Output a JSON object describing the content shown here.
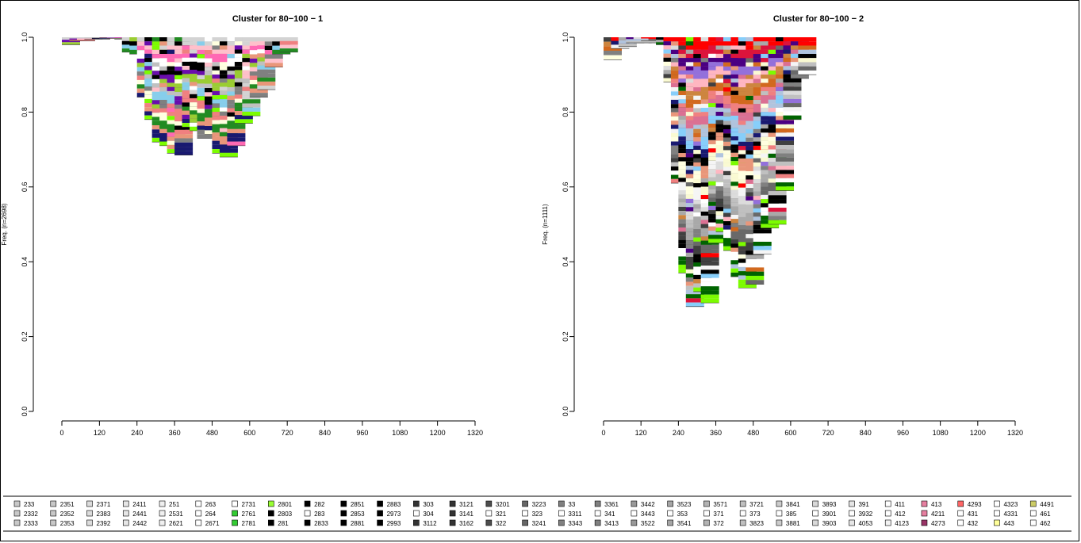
{
  "chart_data": [
    {
      "type": "stacked-bar",
      "title": "Cluster for 80−100 −  1",
      "ylabel": "Freq. (n=2698)",
      "xlabel": "",
      "ylim": [
        0,
        1
      ],
      "yticks": [
        "0.0",
        "0.2",
        "0.4",
        "0.6",
        "0.8",
        "1.0"
      ],
      "xticks": [
        "0",
        "120",
        "240",
        "360",
        "480",
        "600",
        "720",
        "840",
        "960",
        "1080",
        "1200",
        "1320"
      ],
      "x_start": 0,
      "x_step": 24,
      "bar_bottoms": [
        0.98,
        0.99,
        0.99,
        0.995,
        0.995,
        0.998,
        0.997,
        0.995,
        0.96,
        0.955,
        0.84,
        0.78,
        0.72,
        0.71,
        0.69,
        0.685,
        0.76,
        0.75,
        0.73,
        0.74,
        0.69,
        0.68,
        0.71,
        0.77,
        0.79,
        0.84,
        0.86,
        0.92,
        0.955,
        0.96
      ],
      "palette": [
        "#d3d3d3",
        "#ffc0cb",
        "#ff69b4",
        "#ffffff",
        "#000000",
        "#6a0dad",
        "#9acd32",
        "#c0c0c0",
        "#87ceeb",
        "#808080",
        "#f08080",
        "#ffffe0",
        "#228b22",
        "#e9967a",
        "#191970",
        "#7cfc00"
      ],
      "grid": false,
      "legend": "bottom"
    },
    {
      "type": "stacked-bar",
      "title": "Cluster for 80−100 −  2",
      "ylabel": "Freq. (n=1111)",
      "xlabel": "",
      "ylim": [
        0,
        1
      ],
      "yticks": [
        "0.0",
        "0.2",
        "0.4",
        "0.6",
        "0.8",
        "1.0"
      ],
      "xticks": [
        "0",
        "120",
        "240",
        "360",
        "480",
        "600",
        "720",
        "840",
        "960",
        "1080",
        "1200",
        "1320"
      ],
      "x_start": 0,
      "x_step": 24,
      "bar_bottoms": [
        0.94,
        0.97,
        0.975,
        0.985,
        0.985,
        0.99,
        0.985,
        0.98,
        0.88,
        0.61,
        0.37,
        0.28,
        0.32,
        0.29,
        0.45,
        0.48,
        0.43,
        0.36,
        0.33,
        0.34,
        0.42,
        0.49,
        0.5,
        0.59,
        0.78,
        0.89,
        0.9
      ],
      "palette": [
        "#ff0000",
        "#dc143c",
        "#4b0082",
        "#9370db",
        "#ffb6c1",
        "#cd853f",
        "#d2691e",
        "#f08080",
        "#db7093",
        "#b0c4de",
        "#87cefa",
        "#191970",
        "#000000",
        "#e9967a",
        "#ffffe0",
        "#fafad2",
        "#f5f5f5",
        "#dcdcdc",
        "#c0c0c0",
        "#a9a9a9",
        "#808080",
        "#696969",
        "#404040",
        "#000000",
        "#ffffff",
        "#006400",
        "#7cfc00"
      ],
      "grid": false,
      "legend": "bottom"
    }
  ],
  "legend": {
    "items": [
      {
        "label": "233",
        "color": "#c8c8c8"
      },
      {
        "label": "2332",
        "color": "#c8c8c8"
      },
      {
        "label": "2333",
        "color": "#c8c8c8"
      },
      {
        "label": "2351",
        "color": "#c8c8c8"
      },
      {
        "label": "2352",
        "color": "#c8c8c8"
      },
      {
        "label": "2353",
        "color": "#c8c8c8"
      },
      {
        "label": "2371",
        "color": "#dcdcdc"
      },
      {
        "label": "2383",
        "color": "#dcdcdc"
      },
      {
        "label": "2392",
        "color": "#dcdcdc"
      },
      {
        "label": "2411",
        "color": "#e6e6e6"
      },
      {
        "label": "2441",
        "color": "#e6e6e6"
      },
      {
        "label": "2442",
        "color": "#e6e6e6"
      },
      {
        "label": "251",
        "color": "#f0f0f0"
      },
      {
        "label": "2531",
        "color": "#f0f0f0"
      },
      {
        "label": "2621",
        "color": "#f0f0f0"
      },
      {
        "label": "263",
        "color": "#ffffff"
      },
      {
        "label": "264",
        "color": "#ffffff"
      },
      {
        "label": "2671",
        "color": "#ffffff"
      },
      {
        "label": "2731",
        "color": "#ffffff"
      },
      {
        "label": "2761",
        "color": "#33cc33"
      },
      {
        "label": "2781",
        "color": "#33cc33"
      },
      {
        "label": "2801",
        "color": "#99ff33"
      },
      {
        "label": "2803",
        "color": "#000000"
      },
      {
        "label": "281",
        "color": "#000000"
      },
      {
        "label": "282",
        "color": "#000000"
      },
      {
        "label": "283",
        "color": "#ffffff"
      },
      {
        "label": "2833",
        "color": "#000000"
      },
      {
        "label": "2851",
        "color": "#000000"
      },
      {
        "label": "2853",
        "color": "#000000"
      },
      {
        "label": "2881",
        "color": "#000000"
      },
      {
        "label": "2883",
        "color": "#000000"
      },
      {
        "label": "2973",
        "color": "#000000"
      },
      {
        "label": "2993",
        "color": "#000000"
      },
      {
        "label": "303",
        "color": "#333333"
      },
      {
        "label": "304",
        "color": "#ffffff"
      },
      {
        "label": "3112",
        "color": "#333333"
      },
      {
        "label": "3121",
        "color": "#333333"
      },
      {
        "label": "3141",
        "color": "#333333"
      },
      {
        "label": "3162",
        "color": "#333333"
      },
      {
        "label": "3201",
        "color": "#4d4d4d"
      },
      {
        "label": "321",
        "color": "#ffffff"
      },
      {
        "label": "322",
        "color": "#4d4d4d"
      },
      {
        "label": "3223",
        "color": "#666666"
      },
      {
        "label": "323",
        "color": "#ffffff"
      },
      {
        "label": "3241",
        "color": "#666666"
      },
      {
        "label": "33",
        "color": "#808080"
      },
      {
        "label": "3311",
        "color": "#ffffff"
      },
      {
        "label": "3343",
        "color": "#808080"
      },
      {
        "label": "3361",
        "color": "#808080"
      },
      {
        "label": "341",
        "color": "#ffffff"
      },
      {
        "label": "3413",
        "color": "#808080"
      },
      {
        "label": "3442",
        "color": "#999999"
      },
      {
        "label": "3443",
        "color": "#ffffff"
      },
      {
        "label": "3522",
        "color": "#999999"
      },
      {
        "label": "3523",
        "color": "#a6a6a6"
      },
      {
        "label": "353",
        "color": "#ffffff"
      },
      {
        "label": "3541",
        "color": "#a6a6a6"
      },
      {
        "label": "3571",
        "color": "#b3b3b3"
      },
      {
        "label": "371",
        "color": "#ffffff"
      },
      {
        "label": "372",
        "color": "#b3b3b3"
      },
      {
        "label": "3721",
        "color": "#c0c0c0"
      },
      {
        "label": "373",
        "color": "#ffffff"
      },
      {
        "label": "3823",
        "color": "#c0c0c0"
      },
      {
        "label": "3841",
        "color": "#cccccc"
      },
      {
        "label": "385",
        "color": "#ffffff"
      },
      {
        "label": "3881",
        "color": "#cccccc"
      },
      {
        "label": "3893",
        "color": "#d9d9d9"
      },
      {
        "label": "3901",
        "color": "#ffffff"
      },
      {
        "label": "3903",
        "color": "#d9d9d9"
      },
      {
        "label": "391",
        "color": "#e6e6e6"
      },
      {
        "label": "3932",
        "color": "#ffffff"
      },
      {
        "label": "4053",
        "color": "#e6e6e6"
      },
      {
        "label": "411",
        "color": "#ffffff"
      },
      {
        "label": "412",
        "color": "#ffffff"
      },
      {
        "label": "4123",
        "color": "#f2f2f2"
      },
      {
        "label": "413",
        "color": "#e67fa0"
      },
      {
        "label": "4211",
        "color": "#e67fa0"
      },
      {
        "label": "4273",
        "color": "#993366"
      },
      {
        "label": "4293",
        "color": "#ff6666"
      },
      {
        "label": "431",
        "color": "#ffffff"
      },
      {
        "label": "432",
        "color": "#ffffff"
      },
      {
        "label": "4323",
        "color": "#ffffff"
      },
      {
        "label": "4331",
        "color": "#ffffff"
      },
      {
        "label": "443",
        "color": "#ffff99"
      },
      {
        "label": "4491",
        "color": "#cccc66"
      },
      {
        "label": "461",
        "color": "#ffffff"
      },
      {
        "label": "462",
        "color": "#ffffff"
      }
    ]
  }
}
